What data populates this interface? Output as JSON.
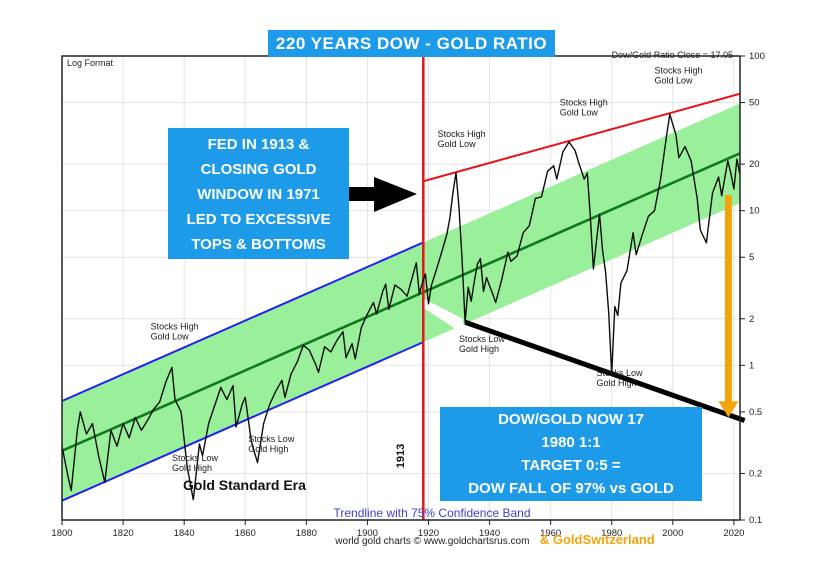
{
  "title": "220 YEARS DOW - GOLD RATIO",
  "header": {
    "log_format": "Log Format",
    "ratio_close": "Dow/Gold Ratio Close = 17.05"
  },
  "callouts": {
    "fed_box_lines": [
      "FED IN 1913 &",
      "CLOSING GOLD",
      "WINDOW IN 1971",
      "LED TO EXCESSIVE",
      "TOPS & BOTTOMS"
    ],
    "target_box_lines": [
      "DOW/GOLD NOW 17",
      "1980 1:1",
      "TARGET 0:5 =",
      "DOW FALL OF 97% vs GOLD"
    ]
  },
  "era_label": "Gold Standard Era",
  "vline_label": "1913",
  "footer": {
    "trendline_caption": "Trendline with 75% Confidence Band",
    "credit": "world gold charts © www.goldchartsrus.com",
    "credit_brand": "& GoldSwitzerland"
  },
  "colors": {
    "callout_blue": "#1d9be8",
    "red": "#e8141c",
    "band_fill": "#9aef9a",
    "band_center_green": "#0e7a1e",
    "channel_blue": "#2222ee",
    "orange": "#f2a50a",
    "caption_blue": "#4141ce",
    "price_black": "#0d0d0d",
    "grid_gray": "#e4e4e4",
    "axis_text": "#222222"
  },
  "chart_data": {
    "type": "line",
    "title": "220 YEARS DOW - GOLD RATIO",
    "y_scale": "log",
    "x_range": [
      1800,
      2022
    ],
    "y_range": [
      0.1,
      100
    ],
    "x_ticks": [
      1800,
      1820,
      1840,
      1860,
      1880,
      1900,
      1920,
      1940,
      1960,
      1980,
      2000,
      2020
    ],
    "y_ticks": [
      100,
      50,
      20,
      10,
      5,
      2,
      1,
      0.5,
      0.2,
      0.1
    ],
    "grid": true,
    "series": {
      "name": "Dow/Gold Ratio",
      "points": [
        [
          1800,
          0.3
        ],
        [
          1802,
          0.19
        ],
        [
          1803,
          0.155
        ],
        [
          1805,
          0.38
        ],
        [
          1806,
          0.5
        ],
        [
          1808,
          0.36
        ],
        [
          1810,
          0.42
        ],
        [
          1812,
          0.26
        ],
        [
          1814,
          0.175
        ],
        [
          1816,
          0.38
        ],
        [
          1818,
          0.3
        ],
        [
          1820,
          0.42
        ],
        [
          1822,
          0.34
        ],
        [
          1824,
          0.46
        ],
        [
          1826,
          0.38
        ],
        [
          1828,
          0.44
        ],
        [
          1830,
          0.52
        ],
        [
          1832,
          0.58
        ],
        [
          1834,
          0.78
        ],
        [
          1836,
          0.97
        ],
        [
          1837,
          0.6
        ],
        [
          1839,
          0.5
        ],
        [
          1841,
          0.22
        ],
        [
          1843,
          0.135
        ],
        [
          1845,
          0.31
        ],
        [
          1846,
          0.26
        ],
        [
          1848,
          0.42
        ],
        [
          1850,
          0.55
        ],
        [
          1852,
          0.72
        ],
        [
          1854,
          0.6
        ],
        [
          1856,
          0.74
        ],
        [
          1857,
          0.4
        ],
        [
          1859,
          0.56
        ],
        [
          1860,
          0.62
        ],
        [
          1862,
          0.32
        ],
        [
          1864,
          0.235
        ],
        [
          1866,
          0.42
        ],
        [
          1868,
          0.56
        ],
        [
          1870,
          0.68
        ],
        [
          1872,
          0.8
        ],
        [
          1873,
          0.62
        ],
        [
          1875,
          0.88
        ],
        [
          1877,
          1.05
        ],
        [
          1879,
          1.35
        ],
        [
          1881,
          1.25
        ],
        [
          1883,
          1.02
        ],
        [
          1884,
          0.9
        ],
        [
          1886,
          1.32
        ],
        [
          1888,
          1.22
        ],
        [
          1890,
          1.45
        ],
        [
          1892,
          1.65
        ],
        [
          1893,
          1.12
        ],
        [
          1895,
          1.38
        ],
        [
          1896,
          1.1
        ],
        [
          1898,
          1.75
        ],
        [
          1900,
          2.15
        ],
        [
          1902,
          2.55
        ],
        [
          1903,
          2.15
        ],
        [
          1905,
          3.0
        ],
        [
          1906,
          3.35
        ],
        [
          1907,
          2.3
        ],
        [
          1909,
          3.3
        ],
        [
          1911,
          3.1
        ],
        [
          1913,
          2.8
        ],
        [
          1915,
          3.9
        ],
        [
          1916,
          4.6
        ],
        [
          1917,
          2.9
        ],
        [
          1918,
          3.4
        ],
        [
          1919,
          3.9
        ],
        [
          1920,
          2.5
        ],
        [
          1921,
          3.3
        ],
        [
          1923,
          4.4
        ],
        [
          1925,
          6.0
        ],
        [
          1926,
          7.0
        ],
        [
          1927,
          9.0
        ],
        [
          1928,
          13.0
        ],
        [
          1929,
          17.6
        ],
        [
          1930,
          10.5
        ],
        [
          1931,
          4.8
        ],
        [
          1932,
          1.9
        ],
        [
          1933,
          3.2
        ],
        [
          1934,
          2.6
        ],
        [
          1935,
          3.5
        ],
        [
          1936,
          4.5
        ],
        [
          1937,
          4.9
        ],
        [
          1938,
          3.0
        ],
        [
          1939,
          3.7
        ],
        [
          1941,
          2.9
        ],
        [
          1942,
          2.55
        ],
        [
          1944,
          3.6
        ],
        [
          1946,
          5.4
        ],
        [
          1947,
          4.7
        ],
        [
          1949,
          5.1
        ],
        [
          1951,
          7.2
        ],
        [
          1953,
          8.0
        ],
        [
          1955,
          12.0
        ],
        [
          1957,
          12.3
        ],
        [
          1959,
          18.0
        ],
        [
          1961,
          19.5
        ],
        [
          1962,
          16.0
        ],
        [
          1964,
          24.0
        ],
        [
          1966,
          27.8
        ],
        [
          1968,
          24.5
        ],
        [
          1969,
          21.0
        ],
        [
          1971,
          16.0
        ],
        [
          1972,
          17.5
        ],
        [
          1973,
          9.0
        ],
        [
          1974,
          4.2
        ],
        [
          1976,
          9.5
        ],
        [
          1977,
          5.5
        ],
        [
          1978,
          4.0
        ],
        [
          1979,
          2.2
        ],
        [
          1980,
          0.87
        ],
        [
          1981,
          2.4
        ],
        [
          1982,
          2.1
        ],
        [
          1983,
          3.4
        ],
        [
          1985,
          4.1
        ],
        [
          1987,
          7.2
        ],
        [
          1988,
          5.2
        ],
        [
          1990,
          7.0
        ],
        [
          1992,
          9.2
        ],
        [
          1994,
          10.0
        ],
        [
          1996,
          16.0
        ],
        [
          1998,
          31.0
        ],
        [
          1999,
          42.0
        ],
        [
          2001,
          31.0
        ],
        [
          2002,
          22.0
        ],
        [
          2004,
          26.0
        ],
        [
          2006,
          21.0
        ],
        [
          2008,
          12.0
        ],
        [
          2009,
          7.5
        ],
        [
          2011,
          6.2
        ],
        [
          2013,
          13.0
        ],
        [
          2015,
          16.5
        ],
        [
          2016,
          12.5
        ],
        [
          2018,
          21.0
        ],
        [
          2019,
          17.5
        ],
        [
          2020,
          13.8
        ],
        [
          2021,
          21.5
        ],
        [
          2022,
          17.05
        ]
      ]
    },
    "trend_channel": {
      "start_year": 1800,
      "end_year": 2022,
      "center_start": 0.28,
      "center_end": 23.5,
      "band_factor": 2.1,
      "blue_until_year": 1918.3
    },
    "red_resistance_line": {
      "x1_year": 1918.3,
      "v1": 15.5,
      "x2_year": 2022,
      "v2": 57
    },
    "black_target_line": {
      "x1_year": 1932,
      "v1": 1.9,
      "x2_year": 2023.5,
      "v2": 0.44
    },
    "vertical_line": {
      "label": "1913",
      "draw_year": 1918.3
    },
    "orange_arrow": {
      "year": 2018.2,
      "v_from": 12.6,
      "v_to": 0.52
    },
    "white_wedge_points": [
      [
        1918.4,
        2.7
      ],
      [
        1931.3,
        2.0
      ],
      [
        1931.3,
        1.6
      ],
      [
        1918.4,
        2.35
      ]
    ],
    "annotations": [
      {
        "lines": [
          "Stocks High",
          "Gold Low"
        ],
        "year": 1829,
        "value": 1.7
      },
      {
        "lines": [
          "Stocks Low",
          "Gold High"
        ],
        "year": 1836,
        "value": 0.24
      },
      {
        "lines": [
          "Stocks Low",
          "Gold High"
        ],
        "year": 1861,
        "value": 0.32
      },
      {
        "lines": [
          "Stocks High",
          "Gold Low"
        ],
        "year": 1923,
        "value": 30
      },
      {
        "lines": [
          "Stocks Low",
          "Gold High"
        ],
        "year": 1930,
        "value": 1.42
      },
      {
        "lines": [
          "Stocks High",
          "Gold Low"
        ],
        "year": 1963,
        "value": 48
      },
      {
        "lines": [
          "Stocks Low",
          "Gold High"
        ],
        "year": 1975,
        "value": 0.85
      },
      {
        "lines": [
          "Stocks High",
          "Gold Low"
        ],
        "year": 1994,
        "value": 77
      }
    ]
  }
}
